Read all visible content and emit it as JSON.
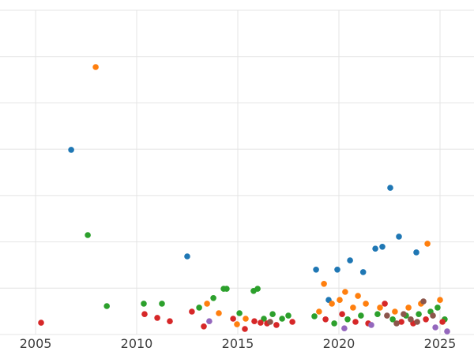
{
  "figure": {
    "background": "#ffffff",
    "gridline_color": "#e4e4e4",
    "tick_label_color": "#3d3d3d"
  },
  "chart_data": {
    "type": "scatter",
    "title": "",
    "xlabel": "",
    "ylabel": "",
    "grid": true,
    "legend": "none",
    "marker_radius": 3.8,
    "xlim": [
      2003.24,
      2026.68
    ],
    "ylim": [
      0,
      105
    ],
    "x_ticks": [
      2005,
      2010,
      2015,
      2020,
      2025
    ],
    "y_gridlines": [
      0,
      15,
      30,
      45,
      60,
      75,
      90,
      105
    ],
    "series": [
      {
        "name": "series-blue",
        "color": "#1f77b4",
        "points": [
          [
            2006.76,
            59.8
          ],
          [
            2012.5,
            25.3
          ],
          [
            2018.87,
            21.0
          ],
          [
            2019.49,
            11.2
          ],
          [
            2019.92,
            21.0
          ],
          [
            2020.55,
            24.0
          ],
          [
            2021.2,
            20.2
          ],
          [
            2021.8,
            27.8
          ],
          [
            2022.15,
            28.4
          ],
          [
            2022.54,
            47.5
          ],
          [
            2022.97,
            31.7
          ],
          [
            2023.83,
            26.6
          ]
        ]
      },
      {
        "name": "series-orange",
        "color": "#ff7f0e",
        "points": [
          [
            2007.97,
            86.6
          ],
          [
            2013.48,
            10.0
          ],
          [
            2014.06,
            6.9
          ],
          [
            2014.96,
            3.3
          ],
          [
            2015.39,
            5.1
          ],
          [
            2019.02,
            7.4
          ],
          [
            2019.26,
            16.4
          ],
          [
            2019.65,
            10.0
          ],
          [
            2020.04,
            11.2
          ],
          [
            2020.31,
            13.8
          ],
          [
            2020.7,
            8.7
          ],
          [
            2020.94,
            12.5
          ],
          [
            2021.33,
            10.0
          ],
          [
            2022.03,
            8.7
          ],
          [
            2022.77,
            7.4
          ],
          [
            2023.44,
            8.7
          ],
          [
            2024.06,
            10.0
          ],
          [
            2024.38,
            29.4
          ],
          [
            2025.0,
            11.2
          ]
        ]
      },
      {
        "name": "series-green",
        "color": "#2ca02c",
        "points": [
          [
            2007.58,
            32.2
          ],
          [
            2008.52,
            9.2
          ],
          [
            2010.35,
            10.0
          ],
          [
            2011.25,
            10.0
          ],
          [
            2013.09,
            8.7
          ],
          [
            2013.79,
            11.8
          ],
          [
            2014.3,
            14.8
          ],
          [
            2014.45,
            14.8
          ],
          [
            2015.08,
            6.9
          ],
          [
            2015.78,
            14.1
          ],
          [
            2015.98,
            14.8
          ],
          [
            2016.29,
            5.1
          ],
          [
            2016.72,
            6.6
          ],
          [
            2017.19,
            5.1
          ],
          [
            2017.5,
            6.1
          ],
          [
            2018.79,
            5.9
          ],
          [
            2019.77,
            3.6
          ],
          [
            2020.43,
            4.9
          ],
          [
            2021.09,
            6.1
          ],
          [
            2021.91,
            6.6
          ],
          [
            2022.66,
            4.9
          ],
          [
            2023.32,
            6.1
          ],
          [
            2023.95,
            6.6
          ],
          [
            2024.53,
            7.4
          ],
          [
            2024.88,
            8.7
          ],
          [
            2025.23,
            4.9
          ]
        ]
      },
      {
        "name": "series-red",
        "color": "#d62728",
        "points": [
          [
            2005.27,
            3.8
          ],
          [
            2010.39,
            6.6
          ],
          [
            2011.02,
            5.4
          ],
          [
            2011.64,
            4.3
          ],
          [
            2012.73,
            7.4
          ],
          [
            2013.32,
            2.6
          ],
          [
            2014.77,
            5.1
          ],
          [
            2015.35,
            1.8
          ],
          [
            2015.82,
            4.3
          ],
          [
            2016.13,
            3.8
          ],
          [
            2016.45,
            3.6
          ],
          [
            2016.91,
            3.1
          ],
          [
            2017.7,
            4.1
          ],
          [
            2019.34,
            4.9
          ],
          [
            2020.16,
            6.6
          ],
          [
            2020.82,
            4.1
          ],
          [
            2021.45,
            3.6
          ],
          [
            2022.27,
            10.0
          ],
          [
            2023.09,
            4.1
          ],
          [
            2023.67,
            3.6
          ],
          [
            2024.3,
            4.9
          ],
          [
            2025.12,
            4.1
          ]
        ]
      },
      {
        "name": "series-purple",
        "color": "#9467bd",
        "points": [
          [
            2013.59,
            4.3
          ],
          [
            2020.27,
            2.0
          ],
          [
            2021.6,
            3.1
          ],
          [
            2024.77,
            2.3
          ],
          [
            2025.35,
            1.0
          ]
        ]
      },
      {
        "name": "series-brown",
        "color": "#8c564b",
        "points": [
          [
            2016.6,
            4.1
          ],
          [
            2022.38,
            6.1
          ],
          [
            2022.85,
            3.6
          ],
          [
            2023.2,
            6.6
          ],
          [
            2023.55,
            4.9
          ],
          [
            2023.87,
            4.1
          ],
          [
            2024.18,
            10.7
          ],
          [
            2024.65,
            6.1
          ]
        ]
      }
    ]
  }
}
